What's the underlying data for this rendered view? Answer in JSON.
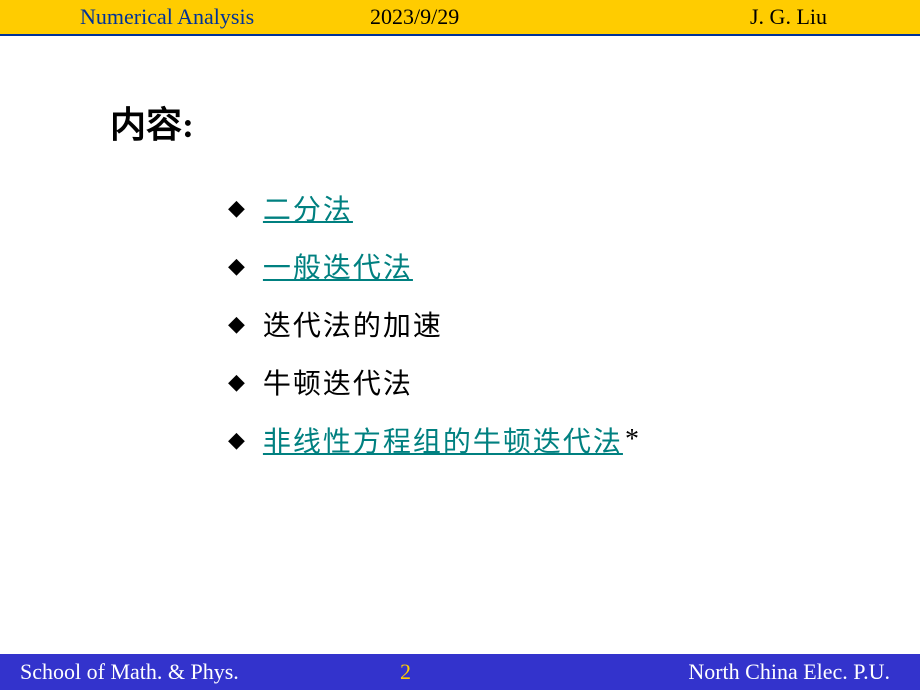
{
  "header": {
    "course": "Numerical Analysis",
    "date": "2023/9/29",
    "author": "J. G. Liu"
  },
  "content": {
    "heading": "内容:",
    "items": [
      {
        "text": "二分法",
        "is_link": true,
        "suffix": ""
      },
      {
        "text": "一般迭代法",
        "is_link": true,
        "suffix": ""
      },
      {
        "text": "迭代法的加速",
        "is_link": false,
        "suffix": ""
      },
      {
        "text": "牛顿迭代法",
        "is_link": false,
        "suffix": ""
      },
      {
        "text": "非线性方程组的牛顿迭代法",
        "is_link": true,
        "suffix": "*"
      }
    ]
  },
  "footer": {
    "school": "School of Math. & Phys.",
    "page": "2",
    "university": "North China Elec. P.U."
  },
  "styling": {
    "header_bg": "#ffcc00",
    "header_border": "#003399",
    "header_course_color": "#003399",
    "footer_bg": "#3333cc",
    "footer_text_color": "#ffffff",
    "footer_page_color": "#ffcc00",
    "link_color": "#008080",
    "text_color": "#000000",
    "heading_fontsize": 36,
    "item_fontsize": 28,
    "bar_fontsize": 22
  }
}
